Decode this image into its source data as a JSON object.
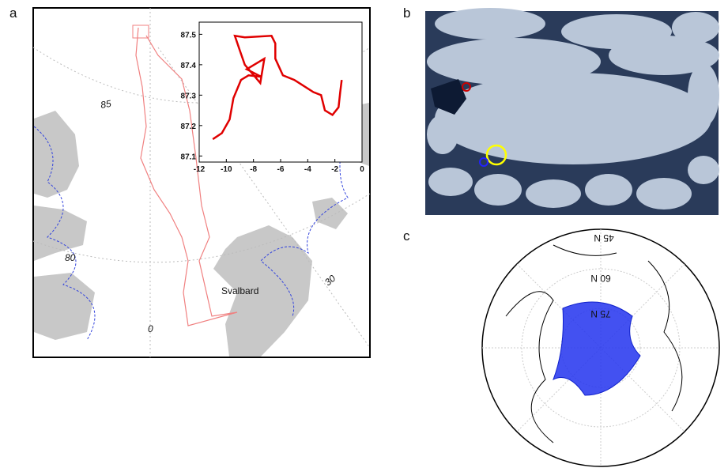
{
  "panel_labels": [
    "a",
    "b",
    "c"
  ],
  "map_labels": [
    "85",
    "80",
    "0",
    "30",
    "Svalbard"
  ],
  "inset": {
    "xlim": [
      -12,
      0
    ],
    "ylim": [
      87.08,
      87.54
    ],
    "xticks": [
      -12,
      -10,
      -8,
      -6,
      -4,
      -2,
      0
    ],
    "yticks": [
      87.1,
      87.2,
      87.3,
      87.4,
      87.5
    ],
    "color": "#e00000",
    "track": {
      "x": [
        -11,
        -10.33,
        -9.76,
        -9.48,
        -8.92,
        -8.36,
        -7.4,
        -8.5,
        -7.2,
        -7.5,
        -8.64,
        -9.03,
        -9.37,
        -8.64,
        -6.67,
        -6.39,
        -6.39,
        -5.83,
        -4.99,
        -3.58,
        -3.02,
        -2.74,
        -2.18,
        -1.73,
        -1.61,
        -1.5
      ],
      "y": [
        87.155,
        87.175,
        87.22,
        87.29,
        87.35,
        87.365,
        87.36,
        87.385,
        87.42,
        87.34,
        87.4,
        87.45,
        87.495,
        87.49,
        87.495,
        87.47,
        87.42,
        87.365,
        87.35,
        87.31,
        87.3,
        87.25,
        87.235,
        87.26,
        87.31,
        87.35
      ]
    }
  },
  "polar_labels": [
    "45 N",
    "60 N",
    "75 N"
  ]
}
